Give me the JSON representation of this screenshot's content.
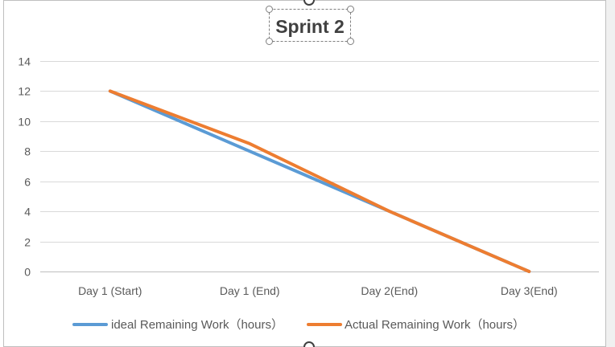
{
  "chart_data": {
    "type": "line",
    "title": "Sprint 2",
    "xlabel": "",
    "ylabel": "",
    "categories": [
      "Day 1 (Start)",
      "Day 1 (End)",
      "Day 2(End)",
      "Day  3(End)"
    ],
    "series": [
      {
        "name": "ideal Remaining Work（hours）",
        "values": [
          12,
          8,
          4,
          0
        ],
        "color": "#5B9BD5"
      },
      {
        "name": "Actual Remaining Work（hours）",
        "values": [
          12,
          8.5,
          4,
          0
        ],
        "color": "#ED7D31"
      }
    ],
    "ylim": [
      0,
      14
    ],
    "yticks": [
      0,
      2,
      4,
      6,
      8,
      10,
      12,
      14
    ],
    "grid": true,
    "legend": "bottom",
    "title_selected": true
  }
}
